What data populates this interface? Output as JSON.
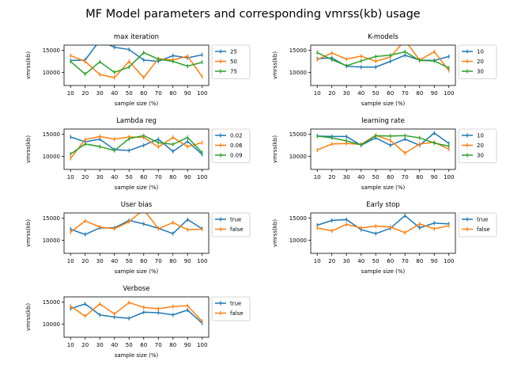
{
  "figure_title": "MF Model parameters and corresponding vmrss(kb) usage",
  "colors": {
    "s0": "#1f77b4",
    "s1": "#ff7f0e",
    "s2": "#2ca02c"
  },
  "chart_data": [
    {
      "type": "line",
      "title": "max iteration",
      "xlabel": "sample size (%)",
      "ylabel": "vmrss(kb)",
      "x": [
        10,
        20,
        30,
        40,
        50,
        60,
        70,
        80,
        90,
        100
      ],
      "ylim": [
        7000,
        16200
      ],
      "yticks": [
        10000,
        15000
      ],
      "legend_position": "right-outside",
      "series": [
        {
          "name": "25",
          "values": [
            12700,
            12800,
            17300,
            15700,
            15200,
            12800,
            12500,
            13800,
            13300,
            14000
          ]
        },
        {
          "name": "50",
          "values": [
            13800,
            12500,
            9500,
            8800,
            12500,
            8800,
            13100,
            12800,
            13700,
            9000
          ]
        },
        {
          "name": "75",
          "values": [
            12500,
            9600,
            12400,
            10000,
            11200,
            14500,
            13000,
            12500,
            11400,
            12300
          ]
        }
      ]
    },
    {
      "type": "line",
      "title": "K-models",
      "xlabel": "sample size (%)",
      "ylabel": "vmrss(kb)",
      "x": [
        10,
        20,
        30,
        40,
        50,
        60,
        70,
        80,
        90,
        100
      ],
      "ylim": [
        7000,
        16200
      ],
      "yticks": [
        10000,
        15000
      ],
      "legend_position": "right-outside",
      "series": [
        {
          "name": "10",
          "values": [
            13100,
            13300,
            11400,
            11200,
            11200,
            12500,
            13900,
            12800,
            12700,
            13600
          ]
        },
        {
          "name": "20",
          "values": [
            12900,
            14400,
            13000,
            13700,
            12500,
            13500,
            17300,
            12800,
            14700,
            10400
          ]
        },
        {
          "name": "30",
          "values": [
            14500,
            12900,
            11500,
            12600,
            13600,
            13900,
            14700,
            12700,
            12600,
            11000
          ]
        }
      ]
    },
    {
      "type": "line",
      "title": "Lambda reg",
      "xlabel": "sample size (%)",
      "ylabel": "vmrss(kb)",
      "x": [
        10,
        20,
        30,
        40,
        50,
        60,
        70,
        80,
        90,
        100
      ],
      "ylim": [
        7000,
        16200
      ],
      "yticks": [
        10000,
        15000
      ],
      "legend_position": "right-outside",
      "series": [
        {
          "name": "0.02",
          "values": [
            14400,
            13300,
            13900,
            11500,
            11300,
            12500,
            13900,
            11100,
            13400,
            10400
          ]
        },
        {
          "name": "0.06",
          "values": [
            9500,
            13800,
            14500,
            13900,
            14400,
            14300,
            12100,
            14300,
            12200,
            13100
          ]
        },
        {
          "name": "0.09",
          "values": [
            10500,
            12800,
            12200,
            11300,
            14000,
            14700,
            13100,
            12700,
            14300,
            10800
          ]
        }
      ]
    },
    {
      "type": "line",
      "title": "learning rate",
      "xlabel": "sample size (%)",
      "ylabel": "vmrss(kb)",
      "x": [
        10,
        20,
        30,
        40,
        50,
        60,
        70,
        80,
        90,
        100
      ],
      "ylim": [
        7000,
        16200
      ],
      "yticks": [
        10000,
        15000
      ],
      "legend_position": "right-outside",
      "series": [
        {
          "name": "10",
          "values": [
            14600,
            14500,
            14500,
            12500,
            14200,
            12500,
            13900,
            12500,
            15300,
            12900
          ]
        },
        {
          "name": "20",
          "values": [
            11400,
            12800,
            12900,
            12700,
            14800,
            13600,
            10700,
            12800,
            13200,
            11600
          ]
        },
        {
          "name": "30",
          "values": [
            14600,
            14200,
            13500,
            12600,
            14700,
            14600,
            14700,
            14200,
            13000,
            12300
          ]
        }
      ]
    },
    {
      "type": "line",
      "title": "User bias",
      "xlabel": "sample size (%)",
      "ylabel": "vmrss(kb)",
      "x": [
        10,
        20,
        30,
        40,
        50,
        60,
        70,
        80,
        90,
        100
      ],
      "ylim": [
        7000,
        16200
      ],
      "yticks": [
        10000,
        15000
      ],
      "legend_position": "right-outside",
      "series": [
        {
          "name": "true",
          "values": [
            12500,
            11300,
            12800,
            12800,
            14500,
            13700,
            12700,
            11500,
            14700,
            12600
          ]
        },
        {
          "name": "false",
          "values": [
            11800,
            14400,
            13000,
            12600,
            14200,
            17000,
            12600,
            14000,
            12400,
            12500
          ]
        }
      ]
    },
    {
      "type": "line",
      "title": "Early stop",
      "xlabel": "sample size (%)",
      "ylabel": "vmrss(kb)",
      "x": [
        10,
        20,
        30,
        40,
        50,
        60,
        70,
        80,
        90,
        100
      ],
      "ylim": [
        7000,
        16200
      ],
      "yticks": [
        10000,
        15000
      ],
      "legend_position": "right-outside",
      "series": [
        {
          "name": "true",
          "values": [
            13400,
            14500,
            14700,
            12400,
            11500,
            12700,
            15600,
            12800,
            13900,
            13700
          ]
        },
        {
          "name": "false",
          "values": [
            12800,
            12100,
            13600,
            12800,
            13200,
            13000,
            11700,
            13700,
            12600,
            13300
          ]
        }
      ]
    },
    {
      "type": "line",
      "title": "Verbose",
      "xlabel": "sample size (%)",
      "ylabel": "vmrss(kb)",
      "x": [
        10,
        20,
        30,
        40,
        50,
        60,
        70,
        80,
        90,
        100
      ],
      "ylim": [
        7000,
        16200
      ],
      "yticks": [
        10000,
        15000
      ],
      "legend_position": "right-outside",
      "series": [
        {
          "name": "true",
          "values": [
            13500,
            14600,
            12100,
            11600,
            11300,
            12700,
            12600,
            12100,
            13200,
            10200
          ]
        },
        {
          "name": "false",
          "values": [
            14100,
            11800,
            14600,
            12300,
            14900,
            13800,
            13500,
            14000,
            14200,
            10600
          ]
        }
      ]
    }
  ]
}
